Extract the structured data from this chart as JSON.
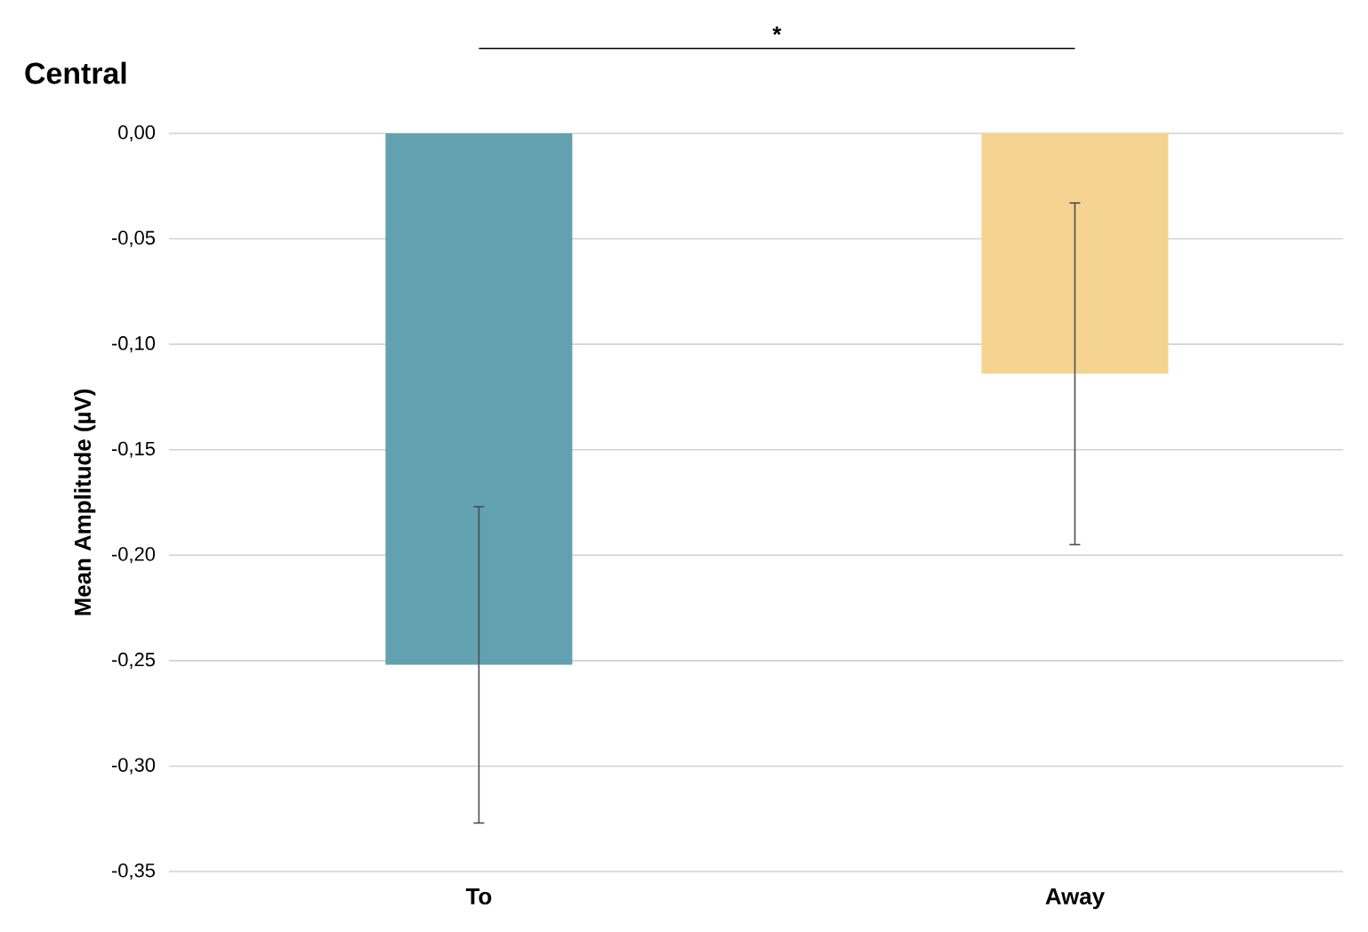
{
  "chart_data": {
    "type": "bar",
    "title": "Central",
    "ylabel": "Mean Amplitude (µV)",
    "categories": [
      "To",
      "Away"
    ],
    "values": [
      -0.252,
      -0.114
    ],
    "colors": [
      "#62a1b0",
      "#f5d491"
    ],
    "errors": [
      0.075,
      0.081
    ],
    "ylim": [
      -0.35,
      0
    ],
    "yticks": [
      {
        "value": -0.35,
        "label": "-0,35"
      },
      {
        "value": -0.3,
        "label": "-0,30"
      },
      {
        "value": -0.25,
        "label": "-0,25"
      },
      {
        "value": -0.2,
        "label": "-0,20"
      },
      {
        "value": -0.15,
        "label": "-0,15"
      },
      {
        "value": -0.1,
        "label": "-0,10"
      },
      {
        "value": -0.05,
        "label": "-0,05"
      },
      {
        "value": 0,
        "label": "0,00"
      }
    ],
    "grid": "y",
    "annotations": [
      "*"
    ]
  }
}
